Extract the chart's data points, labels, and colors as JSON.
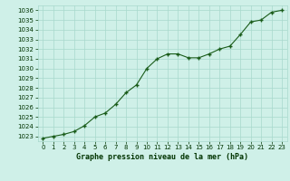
{
  "x": [
    0,
    1,
    2,
    3,
    4,
    5,
    6,
    7,
    8,
    9,
    10,
    11,
    12,
    13,
    14,
    15,
    16,
    17,
    18,
    19,
    20,
    21,
    22,
    23
  ],
  "y": [
    1022.8,
    1023.0,
    1023.2,
    1023.5,
    1024.1,
    1025.0,
    1025.4,
    1026.3,
    1027.5,
    1028.3,
    1030.0,
    1031.0,
    1031.5,
    1031.5,
    1031.1,
    1031.1,
    1031.5,
    1032.0,
    1032.3,
    1033.5,
    1034.8,
    1035.0,
    1035.8,
    1036.0
  ],
  "title": "Graphe pression niveau de la mer (hPa)",
  "ylim_min": 1022.5,
  "ylim_max": 1036.5,
  "xlim_min": -0.5,
  "xlim_max": 23.5,
  "bg_color": "#cff0e8",
  "grid_color": "#a8d8cc",
  "line_color": "#1a5c1a",
  "marker_color": "#1a5c1a",
  "title_color": "#003300",
  "yticks": [
    1023,
    1024,
    1025,
    1026,
    1027,
    1028,
    1029,
    1030,
    1031,
    1032,
    1033,
    1034,
    1035,
    1036
  ],
  "xticks": [
    0,
    1,
    2,
    3,
    4,
    5,
    6,
    7,
    8,
    9,
    10,
    11,
    12,
    13,
    14,
    15,
    16,
    17,
    18,
    19,
    20,
    21,
    22,
    23
  ]
}
